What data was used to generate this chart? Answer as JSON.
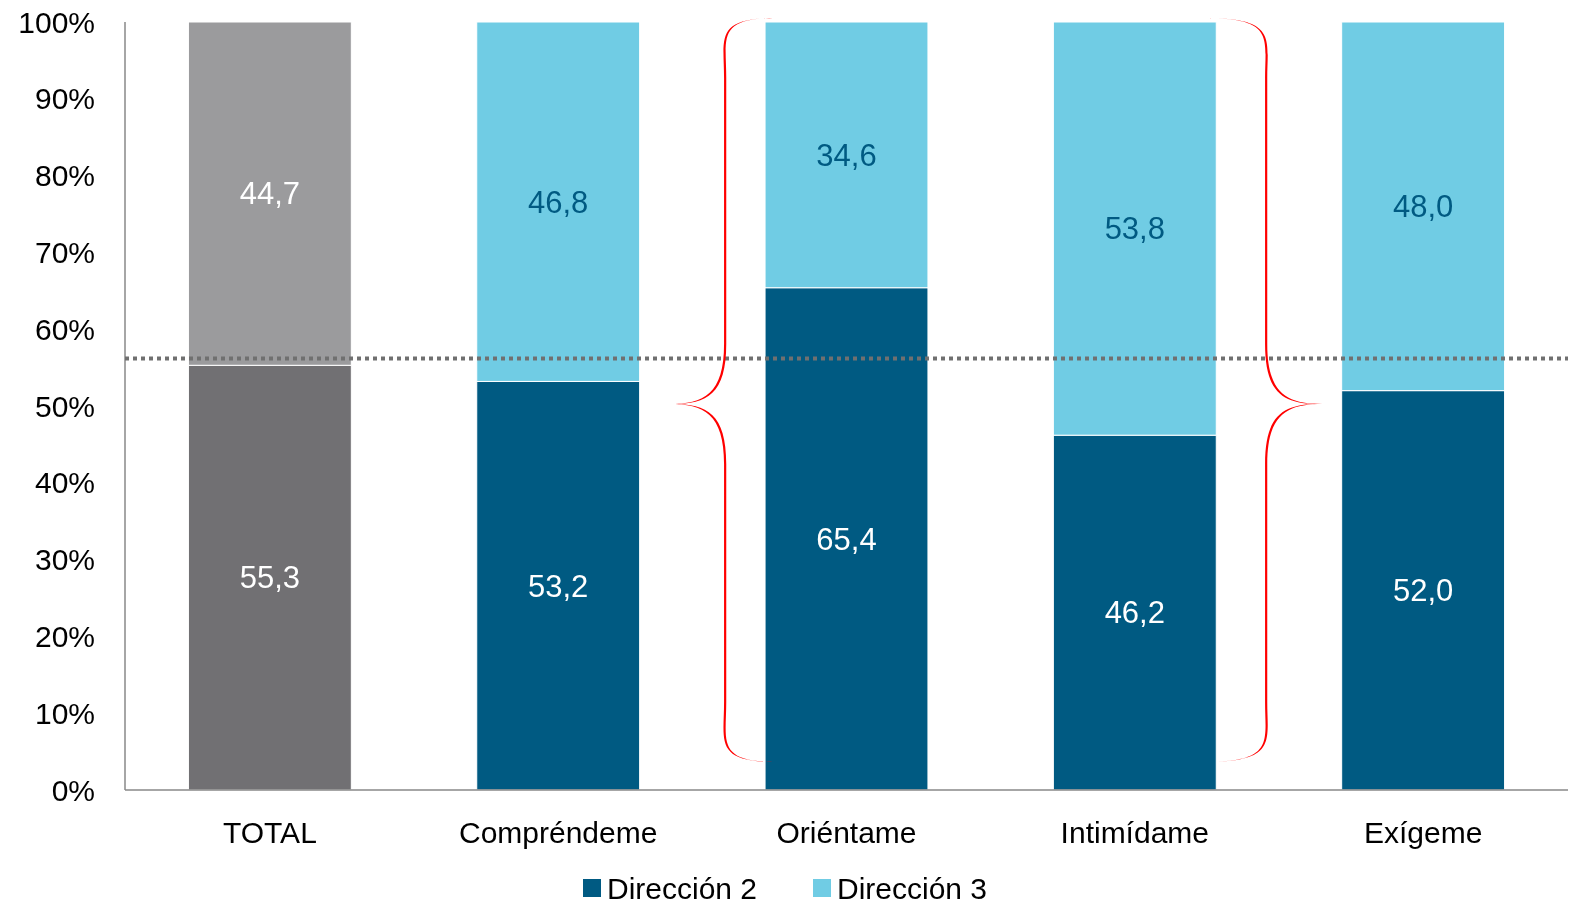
{
  "chart_data": {
    "type": "bar",
    "stacked": true,
    "categories": [
      "TOTAL",
      "Compréndeme",
      "Oriéntame",
      "Intimídame",
      "Exígeme"
    ],
    "series": [
      {
        "name": "Dirección 2",
        "color": "#005a82",
        "colors": [
          "#717073",
          "#005a82",
          "#005a82",
          "#005a82",
          "#005a82"
        ],
        "values": [
          55.3,
          53.2,
          65.4,
          46.2,
          52.0
        ],
        "value_labels": [
          "55,3",
          "53,2",
          "65,4",
          "46,2",
          "52,0"
        ]
      },
      {
        "name": "Dirección 3",
        "color": "#70cce4",
        "colors": [
          "#9b9b9d",
          "#70cce4",
          "#70cce4",
          "#70cce4",
          "#70cce4"
        ],
        "values": [
          44.7,
          46.8,
          34.6,
          53.8,
          48.0
        ],
        "value_labels": [
          "44,7",
          "46,8",
          "34,6",
          "53,8",
          "48,0"
        ]
      }
    ],
    "ylim": [
      0,
      100
    ],
    "yticks": [
      {
        "value": 0,
        "label": "0%"
      },
      {
        "value": 10,
        "label": "10%"
      },
      {
        "value": 20,
        "label": "20%"
      },
      {
        "value": 30,
        "label": "30%"
      },
      {
        "value": 40,
        "label": "40%"
      },
      {
        "value": 50,
        "label": "50%"
      },
      {
        "value": 60,
        "label": "60%"
      },
      {
        "value": 70,
        "label": "70%"
      },
      {
        "value": 80,
        "label": "80%"
      },
      {
        "value": 90,
        "label": "90%"
      },
      {
        "value": 100,
        "label": "100%"
      }
    ],
    "ref_lines": [
      {
        "axis": "y",
        "value": 56.2,
        "color": "#707070",
        "line_style": "dotted"
      }
    ],
    "grid": false,
    "legend": "bottom"
  }
}
